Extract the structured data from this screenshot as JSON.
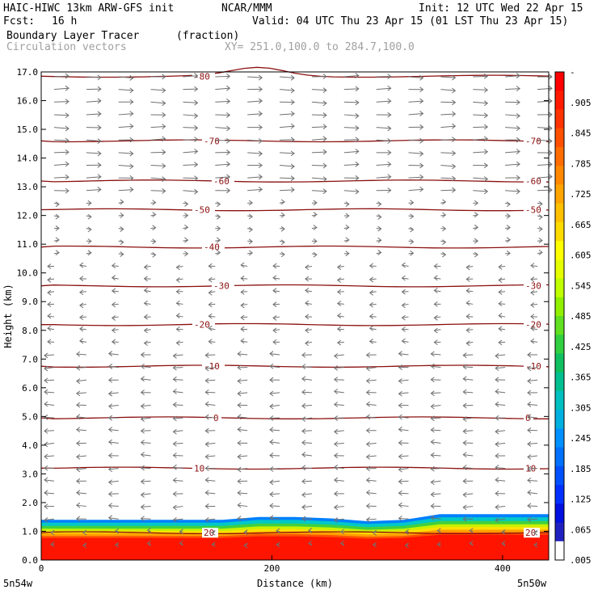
{
  "header": {
    "model": "HAIC-HIWC 13km ARW-GFS init",
    "org": "NCAR/MMM",
    "init": "Init: 12 UTC Wed 22 Apr 15",
    "fcst_label": "Fcst:",
    "fcst_value": "16 h",
    "valid": "Valid: 04 UTC Thu 23 Apr 15 (01 LST Thu 23 Apr 15)",
    "field": "Boundary Layer Tracer",
    "field_units": "(fraction)",
    "overlay": "Circulation vectors",
    "xy": "XY= 251.0,100.0 to 284.7,100.0"
  },
  "chart_data": {
    "type": "heatmap",
    "ylabel": "Height (km)",
    "xlabel": "Distance (km)",
    "xlim": [
      0,
      440
    ],
    "ylim": [
      0,
      17
    ],
    "yticks": [
      0.0,
      1.0,
      2.0,
      3.0,
      4.0,
      5.0,
      6.0,
      7.0,
      8.0,
      9.0,
      10.0,
      11.0,
      12.0,
      13.0,
      14.0,
      15.0,
      16.0,
      17.0
    ],
    "ytick_labels": [
      "0.0",
      "1.0",
      "2.0",
      "3.0",
      "4.0",
      "5.0",
      "6.0",
      "7.0",
      "8.0",
      "9.0",
      "10.0",
      "11.0",
      "12.0",
      "13.0",
      "14.0",
      "15.0",
      "16.0",
      "17.0"
    ],
    "xticks": [
      0,
      200,
      400
    ],
    "xtick_labels": [
      "0",
      "200",
      "400"
    ],
    "x_end_labels": [
      "5n54w",
      "5n50w"
    ],
    "colorbar": {
      "labels": [
        "-",
        ".905",
        ".845",
        ".785",
        ".725",
        ".665",
        ".605",
        ".545",
        ".485",
        ".425",
        ".365",
        ".305",
        ".245",
        ".185",
        ".125",
        ".065",
        ".005"
      ],
      "colors": [
        "#ff0000",
        "#ff1a00",
        "#ff3300",
        "#ff5000",
        "#ff6c00",
        "#ff8800",
        "#ffa400",
        "#ffc000",
        "#ffdc00",
        "#ffff00",
        "#e6ff00",
        "#c0ff00",
        "#90f000",
        "#60e020",
        "#30d040",
        "#10c060",
        "#00c090",
        "#00c0c0",
        "#00b0e0",
        "#0090ff",
        "#0070ff",
        "#0050ff",
        "#0030ff",
        "#0010e0",
        "#2020c0",
        "#ffffff"
      ]
    },
    "contours": [
      {
        "level": "-80",
        "height": 16.85
      },
      {
        "level": "-70",
        "height": 14.6
      },
      {
        "level": "-60",
        "height": 13.2
      },
      {
        "level": "-50",
        "height": 12.2
      },
      {
        "level": "-40",
        "height": 10.9
      },
      {
        "level": "-30",
        "height": 9.55
      },
      {
        "level": "-20",
        "height": 8.2
      },
      {
        "level": "-10",
        "height": 6.75
      },
      {
        "level": "0",
        "height": 4.95
      },
      {
        "level": "10",
        "height": 3.2
      },
      {
        "level": "20",
        "height": 0.95
      }
    ],
    "tracer_top_km": [
      1.4,
      1.4,
      1.4,
      1.4,
      1.4,
      1.4,
      1.5,
      1.5,
      1.45,
      1.35,
      1.4,
      1.6,
      1.6,
      1.6,
      1.6
    ]
  }
}
